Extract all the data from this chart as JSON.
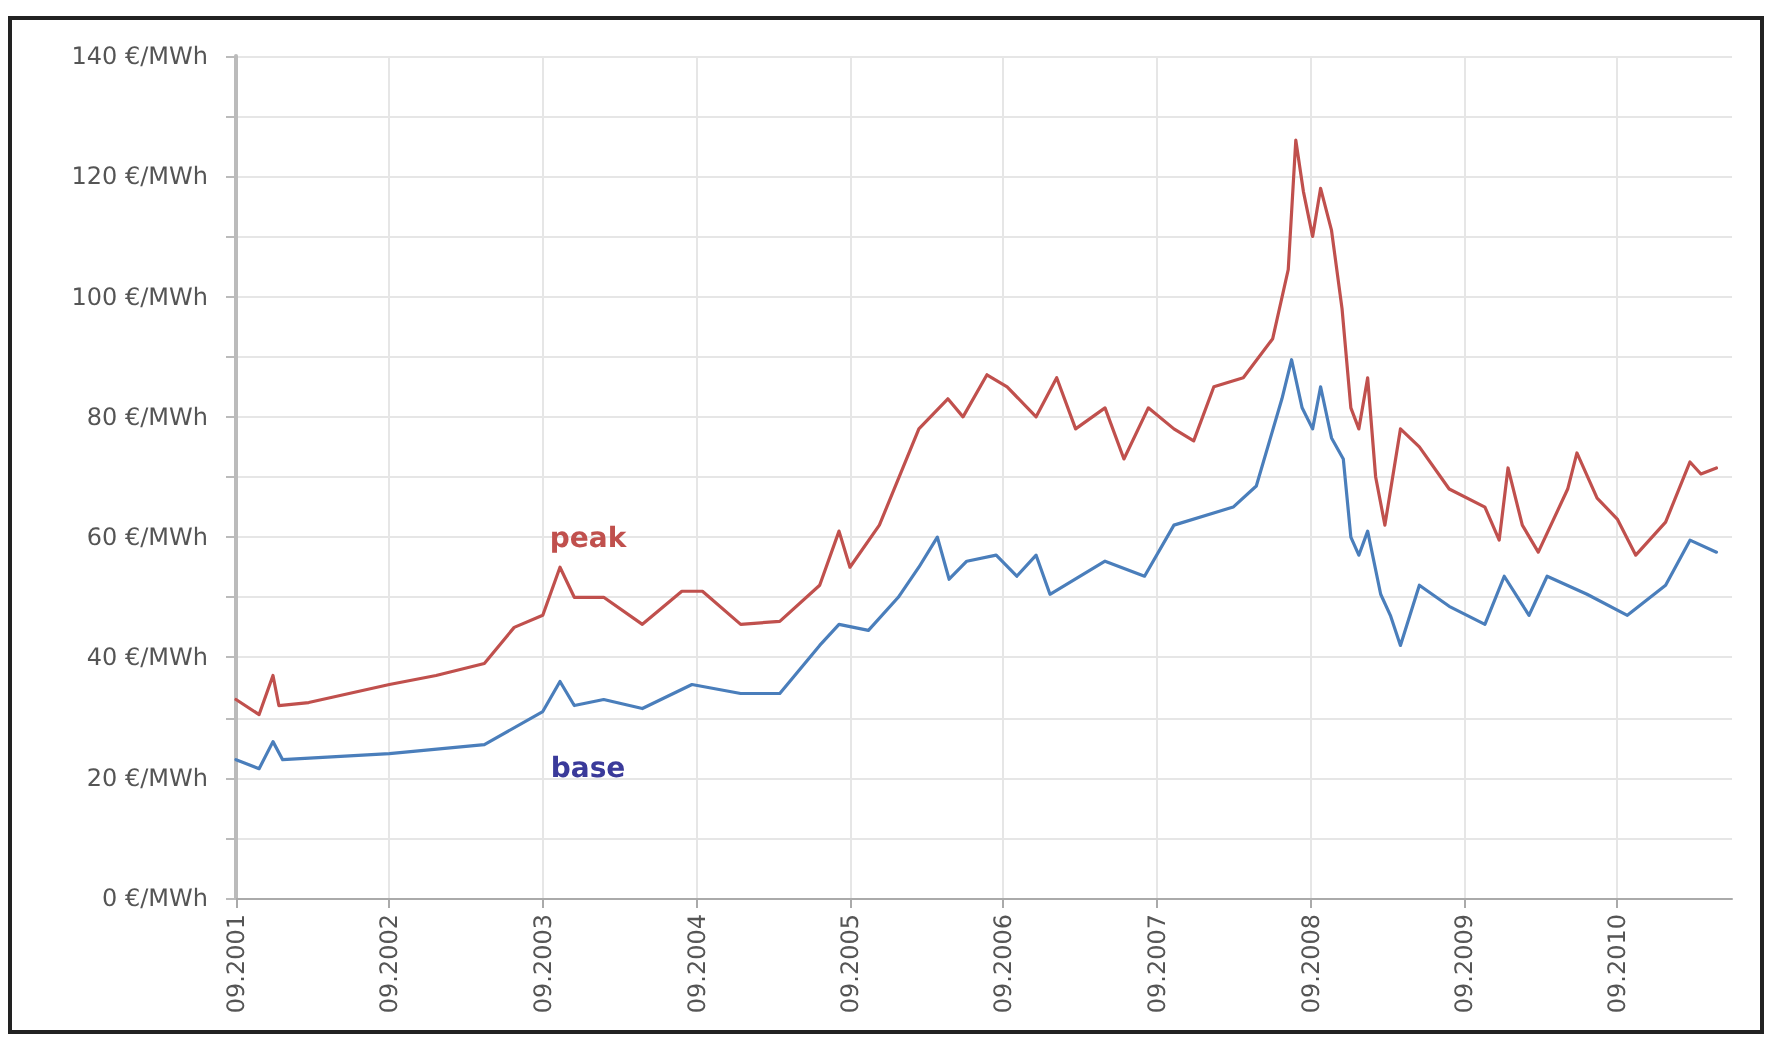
{
  "chart_data": {
    "type": "line",
    "xlim": [
      "2001-09-01",
      "2011-06-01"
    ],
    "xticks": [
      {
        "value": "2001-09-01",
        "label": "09.2001"
      },
      {
        "value": "2002-09-01",
        "label": "09.2002"
      },
      {
        "value": "2003-09-01",
        "label": "09.2003"
      },
      {
        "value": "2004-09-01",
        "label": "09.2004"
      },
      {
        "value": "2005-09-01",
        "label": "09.2005"
      },
      {
        "value": "2006-09-01",
        "label": "09.2006"
      },
      {
        "value": "2007-09-01",
        "label": "09.2007"
      },
      {
        "value": "2008-09-01",
        "label": "09.2008"
      },
      {
        "value": "2009-09-01",
        "label": "09.2009"
      },
      {
        "value": "2010-09-01",
        "label": "09.2010"
      }
    ],
    "ylim": [
      0,
      140
    ],
    "yticks": [
      {
        "value": 0,
        "label": "0 €/MWh"
      },
      {
        "value": 10,
        "label": null
      },
      {
        "value": 20,
        "label": "20 €/MWh"
      },
      {
        "value": 30,
        "label": null
      },
      {
        "value": 40,
        "label": "40 €/MWh"
      },
      {
        "value": 50,
        "label": null
      },
      {
        "value": 60,
        "label": "60 €/MWh"
      },
      {
        "value": 70,
        "label": null
      },
      {
        "value": 80,
        "label": "80 €/MWh"
      },
      {
        "value": 90,
        "label": null
      },
      {
        "value": 100,
        "label": "100 €/MWh"
      },
      {
        "value": 110,
        "label": null
      },
      {
        "value": 120,
        "label": "120 €/MWh"
      },
      {
        "value": 130,
        "label": null
      },
      {
        "value": 140,
        "label": "140 €/MWh"
      }
    ],
    "grid": true,
    "legend": false,
    "marker": "none",
    "line_style": "solid",
    "series": [
      {
        "name": "peak",
        "color": "#c0504d",
        "x": [
          "2001-09-01",
          "2001-10-26",
          "2001-11-28",
          "2001-12-12",
          "2002-02-21",
          "2002-09-01",
          "2002-12-21",
          "2003-04-15",
          "2003-06-25",
          "2003-09-01",
          "2003-10-12",
          "2003-11-15",
          "2004-01-24",
          "2004-04-25",
          "2004-07-28",
          "2004-09-15",
          "2004-12-15",
          "2005-03-18",
          "2005-06-21",
          "2005-08-06",
          "2005-09-01",
          "2005-11-10",
          "2006-02-12",
          "2006-04-22",
          "2006-05-28",
          "2006-07-24",
          "2006-09-10",
          "2006-11-18",
          "2007-01-06",
          "2007-02-20",
          "2007-05-01",
          "2007-06-15",
          "2007-08-12",
          "2007-10-12",
          "2007-11-28",
          "2008-01-15",
          "2008-03-25",
          "2008-06-03",
          "2008-07-10",
          "2008-07-28",
          "2008-08-15",
          "2008-09-06",
          "2008-09-25",
          "2008-10-21",
          "2008-11-15",
          "2008-12-06",
          "2008-12-25",
          "2009-01-15",
          "2009-02-03",
          "2009-02-25",
          "2009-04-03",
          "2009-05-18",
          "2009-07-28",
          "2009-10-21",
          "2009-11-24",
          "2009-12-15",
          "2010-01-18",
          "2010-02-25",
          "2010-05-06",
          "2010-05-28",
          "2010-07-15",
          "2010-09-01",
          "2010-10-15",
          "2010-12-25",
          "2011-02-21",
          "2011-03-19",
          "2011-04-25"
        ],
        "values": [
          33,
          30.5,
          37,
          32,
          32.5,
          35.5,
          37,
          39,
          45,
          47,
          55,
          50,
          50,
          45.5,
          51,
          51,
          45.5,
          46,
          52,
          61,
          55,
          62,
          78,
          83,
          80,
          87,
          85,
          80,
          86.5,
          78,
          81.5,
          73,
          81.5,
          78,
          76,
          85,
          86.5,
          93,
          104.5,
          126,
          117.5,
          110,
          118,
          111,
          98,
          81.5,
          78,
          86.5,
          70,
          62,
          78,
          75,
          68,
          65,
          59.5,
          71.5,
          62,
          57.5,
          68,
          74,
          66.5,
          63,
          57,
          62.5,
          72.5,
          70.5,
          71.5
        ]
      },
      {
        "name": "base",
        "color": "#4a7ebb",
        "x": [
          "2001-09-01",
          "2001-10-26",
          "2001-11-28",
          "2001-12-21",
          "2002-09-01",
          "2003-04-15",
          "2003-09-01",
          "2003-10-12",
          "2003-11-15",
          "2004-01-24",
          "2004-04-25",
          "2004-08-21",
          "2004-12-15",
          "2005-03-18",
          "2005-06-21",
          "2005-08-06",
          "2005-10-15",
          "2005-12-25",
          "2006-02-12",
          "2006-03-28",
          "2006-04-25",
          "2006-06-06",
          "2006-08-15",
          "2006-10-03",
          "2006-11-18",
          "2006-12-21",
          "2007-05-01",
          "2007-08-03",
          "2007-10-12",
          "2008-03-01",
          "2008-04-25",
          "2008-06-25",
          "2008-07-18",
          "2008-08-12",
          "2008-09-06",
          "2008-09-25",
          "2008-10-21",
          "2008-11-18",
          "2008-12-06",
          "2008-12-25",
          "2009-01-15",
          "2009-02-15",
          "2009-03-10",
          "2009-04-03",
          "2009-05-18",
          "2009-07-28",
          "2009-10-21",
          "2009-12-06",
          "2010-02-03",
          "2010-03-18",
          "2010-06-21",
          "2010-09-25",
          "2010-12-25",
          "2011-02-21",
          "2011-04-25"
        ],
        "values": [
          23,
          21.5,
          26,
          23,
          24,
          25.5,
          31,
          36,
          32,
          33,
          31.5,
          35.5,
          34,
          34,
          42,
          45.5,
          44.5,
          50,
          55,
          60,
          53,
          56,
          57,
          53.5,
          57,
          50.5,
          56,
          53.5,
          62,
          65,
          68.5,
          83,
          89.5,
          81.5,
          78,
          85,
          76.5,
          73,
          60,
          57,
          61,
          50.5,
          47,
          42,
          52,
          48.5,
          45.5,
          53.5,
          47,
          53.5,
          50.5,
          47,
          52,
          59.5,
          57.5
        ]
      }
    ]
  }
}
